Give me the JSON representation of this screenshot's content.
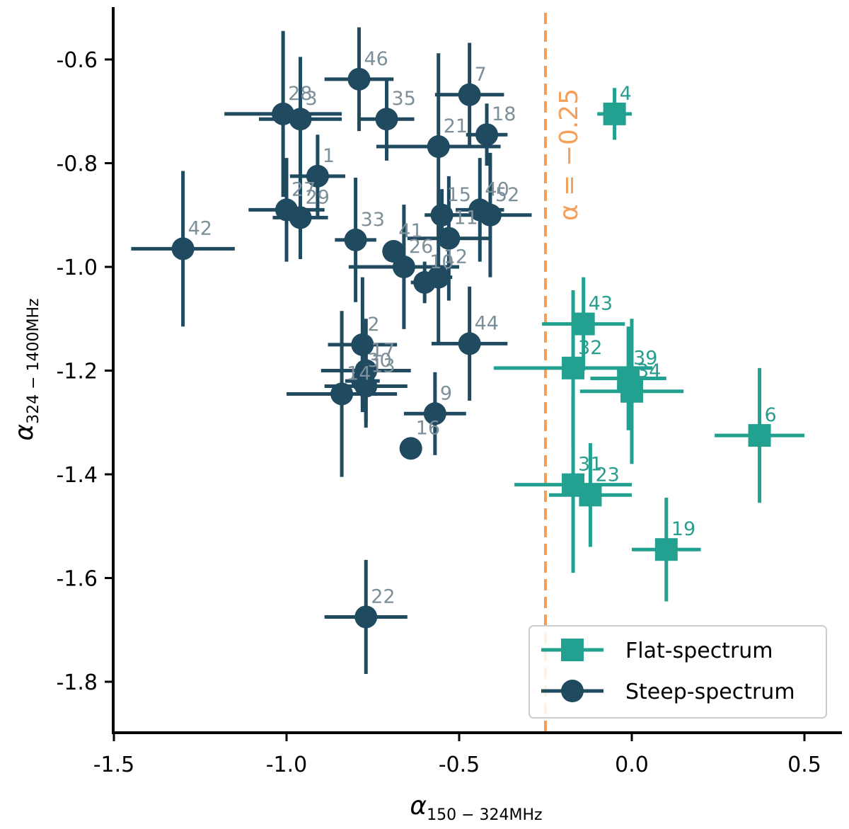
{
  "chart_data": {
    "type": "scatter",
    "xlabel": "α",
    "xlabel_sub": "150 − 324MHz",
    "ylabel": "α",
    "ylabel_sub": "324 − 1400MHz",
    "xlim": [
      -1.5,
      0.62
    ],
    "ylim": [
      -1.9,
      -0.52
    ],
    "xticks": [
      -1.5,
      -1.0,
      -0.5,
      0.0,
      0.5
    ],
    "xtick_labels": [
      "-1.5",
      "-1.0",
      "-0.5",
      "0.0",
      "0.5"
    ],
    "yticks": [
      -0.6,
      -0.8,
      -1.0,
      -1.2,
      -1.4,
      -1.6,
      -1.8
    ],
    "ytick_labels": [
      "-0.6",
      "-0.8",
      "-1.0",
      "-1.2",
      "-1.4",
      "-1.6",
      "-1.8"
    ],
    "threshold": {
      "x": -0.25,
      "label": "α = −0.25",
      "color": "#f5a05a"
    },
    "legend": {
      "position": "bottom-right",
      "entries": [
        {
          "label": "Flat-spectrum",
          "series": "flat"
        },
        {
          "label": "Steep-spectrum",
          "series": "steep"
        }
      ]
    },
    "series": [
      {
        "name": "Flat-spectrum",
        "key": "flat",
        "marker": "square",
        "color": "#22a191",
        "label_color": "#2a9d8f",
        "points": [
          {
            "id": "4",
            "x": -0.05,
            "y": -0.705,
            "xerr": 0.05,
            "yerr": 0.05
          },
          {
            "id": "43",
            "x": -0.14,
            "y": -1.11,
            "xerr": 0.12,
            "yerr": 0.09
          },
          {
            "id": "32",
            "x": -0.17,
            "y": -1.195,
            "xerr": 0.23,
            "yerr": 0.15
          },
          {
            "id": "39",
            "x": -0.01,
            "y": -1.215,
            "xerr": 0.11,
            "yerr": 0.1
          },
          {
            "id": "34",
            "x": 0.0,
            "y": -1.24,
            "xerr": 0.15,
            "yerr": 0.14
          },
          {
            "id": "6",
            "x": 0.37,
            "y": -1.325,
            "xerr": 0.13,
            "yerr": 0.13
          },
          {
            "id": "31",
            "x": -0.17,
            "y": -1.42,
            "xerr": 0.17,
            "yerr": 0.17
          },
          {
            "id": "23",
            "x": -0.12,
            "y": -1.44,
            "xerr": 0.12,
            "yerr": 0.1
          },
          {
            "id": "19",
            "x": 0.1,
            "y": -1.545,
            "xerr": 0.1,
            "yerr": 0.1
          }
        ]
      },
      {
        "name": "Steep-spectrum",
        "key": "steep",
        "marker": "circle",
        "color": "#1f4a5f",
        "label_color": "#7d8f99",
        "points": [
          {
            "id": "46",
            "x": -0.79,
            "y": -0.638,
            "xerr": 0.1,
            "yerr": 0.1
          },
          {
            "id": "7",
            "x": -0.47,
            "y": -0.668,
            "xerr": 0.1,
            "yerr": 0.1
          },
          {
            "id": "28",
            "x": -1.01,
            "y": -0.705,
            "xerr": 0.17,
            "yerr": 0.16
          },
          {
            "id": "3",
            "x": -0.96,
            "y": -0.715,
            "xerr": 0.12,
            "yerr": 0.12
          },
          {
            "id": "35",
            "x": -0.71,
            "y": -0.715,
            "xerr": 0.08,
            "yerr": 0.08
          },
          {
            "id": "18",
            "x": -0.42,
            "y": -0.745,
            "xerr": 0.06,
            "yerr": 0.06
          },
          {
            "id": "21",
            "x": -0.56,
            "y": -0.768,
            "xerr": 0.18,
            "yerr": 0.18
          },
          {
            "id": "1",
            "x": -0.91,
            "y": -0.825,
            "xerr": 0.08,
            "yerr": 0.08
          },
          {
            "id": "27",
            "x": -1.0,
            "y": -0.89,
            "xerr": 0.11,
            "yerr": 0.1
          },
          {
            "id": "29",
            "x": -0.96,
            "y": -0.905,
            "xerr": 0.08,
            "yerr": 0.08
          },
          {
            "id": "40",
            "x": -0.44,
            "y": -0.89,
            "xerr": 0.07,
            "yerr": 0.1
          },
          {
            "id": "52",
            "x": -0.41,
            "y": -0.9,
            "xerr": 0.12,
            "yerr": 0.12
          },
          {
            "id": "15",
            "x": -0.55,
            "y": -0.9,
            "xerr": 0.05,
            "yerr": 0.05
          },
          {
            "id": "33",
            "x": -0.8,
            "y": -0.948,
            "xerr": 0.06,
            "yerr": 0.12
          },
          {
            "id": "11",
            "x": -0.53,
            "y": -0.945,
            "xerr": 0.12,
            "yerr": 0.12
          },
          {
            "id": "41",
            "x": -0.69,
            "y": -0.97,
            "xerr": 0.02,
            "yerr": 0.02
          },
          {
            "id": "26",
            "x": -0.66,
            "y": -1.0,
            "xerr": 0.16,
            "yerr": 0.12
          },
          {
            "id": "12",
            "x": -0.56,
            "y": -1.02,
            "xerr": 0.04,
            "yerr": 0.13
          },
          {
            "id": "42",
            "x": -1.3,
            "y": -0.965,
            "xerr": 0.15,
            "yerr": 0.15
          },
          {
            "id": "10",
            "x": -0.6,
            "y": -1.03,
            "xerr": 0.04,
            "yerr": 0.04
          },
          {
            "id": "44",
            "x": -0.47,
            "y": -1.148,
            "xerr": 0.11,
            "yerr": 0.11
          },
          {
            "id": "2",
            "x": -0.78,
            "y": -1.15,
            "xerr": 0.1,
            "yerr": 0.13
          },
          {
            "id": "17",
            "x": -0.77,
            "y": -1.2,
            "xerr": 0.13,
            "yerr": 0.1
          },
          {
            "id": "30",
            "x": -0.78,
            "y": -1.22,
            "xerr": 0.05,
            "yerr": 0.05
          },
          {
            "id": "13",
            "x": -0.77,
            "y": -1.23,
            "xerr": 0.12,
            "yerr": 0.08
          },
          {
            "id": "14",
            "x": -0.84,
            "y": -1.245,
            "xerr": 0.16,
            "yerr": 0.16
          },
          {
            "id": "9",
            "x": -0.57,
            "y": -1.283,
            "xerr": 0.09,
            "yerr": 0.08
          },
          {
            "id": "16",
            "x": -0.64,
            "y": -1.35,
            "xerr": 0.0,
            "yerr": 0.0
          },
          {
            "id": "22",
            "x": -0.77,
            "y": -1.675,
            "xerr": 0.12,
            "yerr": 0.11
          }
        ]
      }
    ]
  }
}
